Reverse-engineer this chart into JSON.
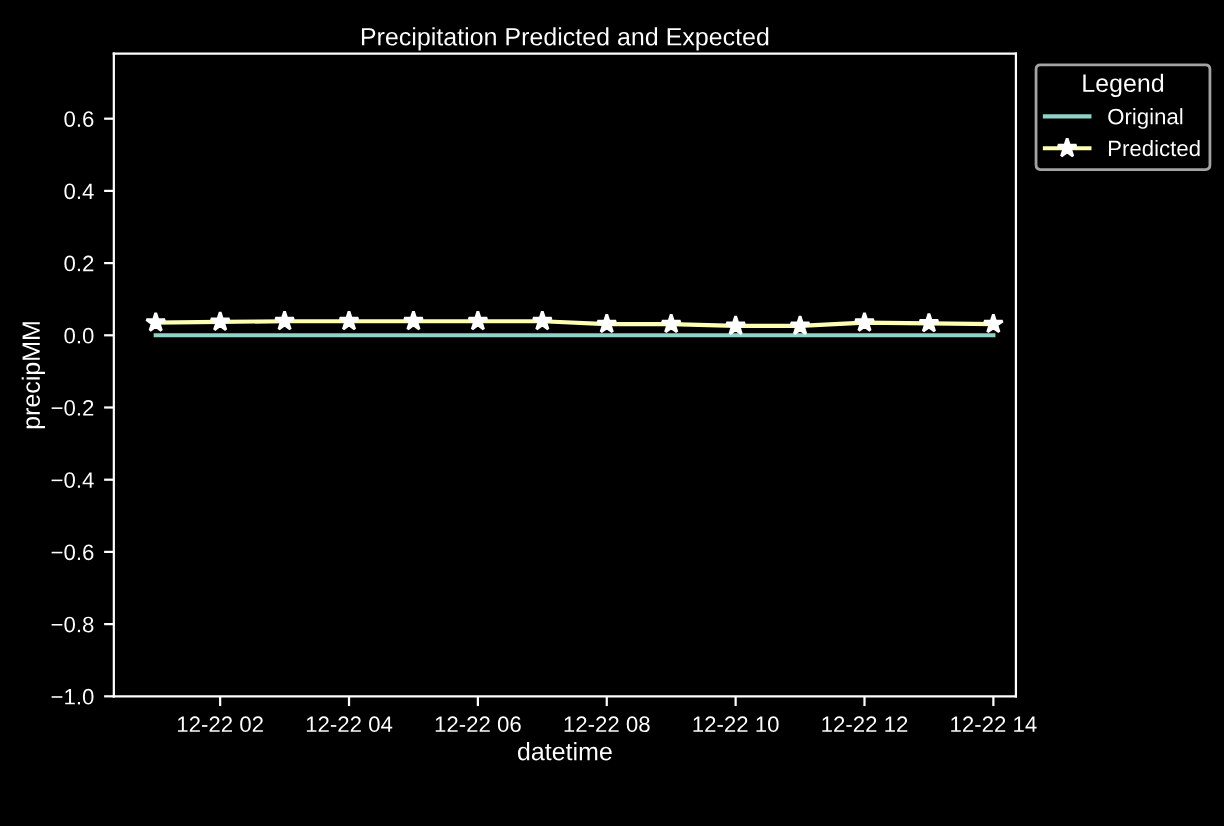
{
  "chart_data": {
    "type": "line",
    "title": "Precipitation Predicted and Expected",
    "xlabel": "datetime",
    "ylabel": "precipMM",
    "legend_title": "Legend",
    "legend": "right",
    "categories": [
      null,
      "12-22 02",
      null,
      "12-22 04",
      null,
      "12-22 06",
      null,
      "12-22 08",
      null,
      "12-22 10",
      null,
      "12-22 12",
      null,
      "12-22 14"
    ],
    "series": [
      {
        "name": "Original",
        "color": "#8dd3c7",
        "marker": "none",
        "values": [
          0,
          0,
          0,
          0,
          0,
          0,
          0,
          0,
          0,
          0,
          0,
          0,
          0,
          0
        ]
      },
      {
        "name": "Predicted",
        "color": "#feffb3",
        "marker": "star",
        "values": [
          0.035,
          0.037,
          0.039,
          0.039,
          0.039,
          0.039,
          0.039,
          0.031,
          0.031,
          0.026,
          0.026,
          0.035,
          0.033,
          0.031
        ]
      }
    ],
    "ylim": [
      -1.0,
      0.78
    ],
    "yticks": [
      {
        "value": -1.0,
        "label": "−1.0"
      },
      {
        "value": -0.8,
        "label": "−0.8"
      },
      {
        "value": -0.6,
        "label": "−0.6"
      },
      {
        "value": -0.4,
        "label": "−0.4"
      },
      {
        "value": -0.2,
        "label": "−0.2"
      },
      {
        "value": 0.0,
        "label": "0.0"
      },
      {
        "value": 0.2,
        "label": "0.2"
      },
      {
        "value": 0.4,
        "label": "0.4"
      },
      {
        "value": 0.6,
        "label": "0.6"
      }
    ],
    "grid": false
  }
}
